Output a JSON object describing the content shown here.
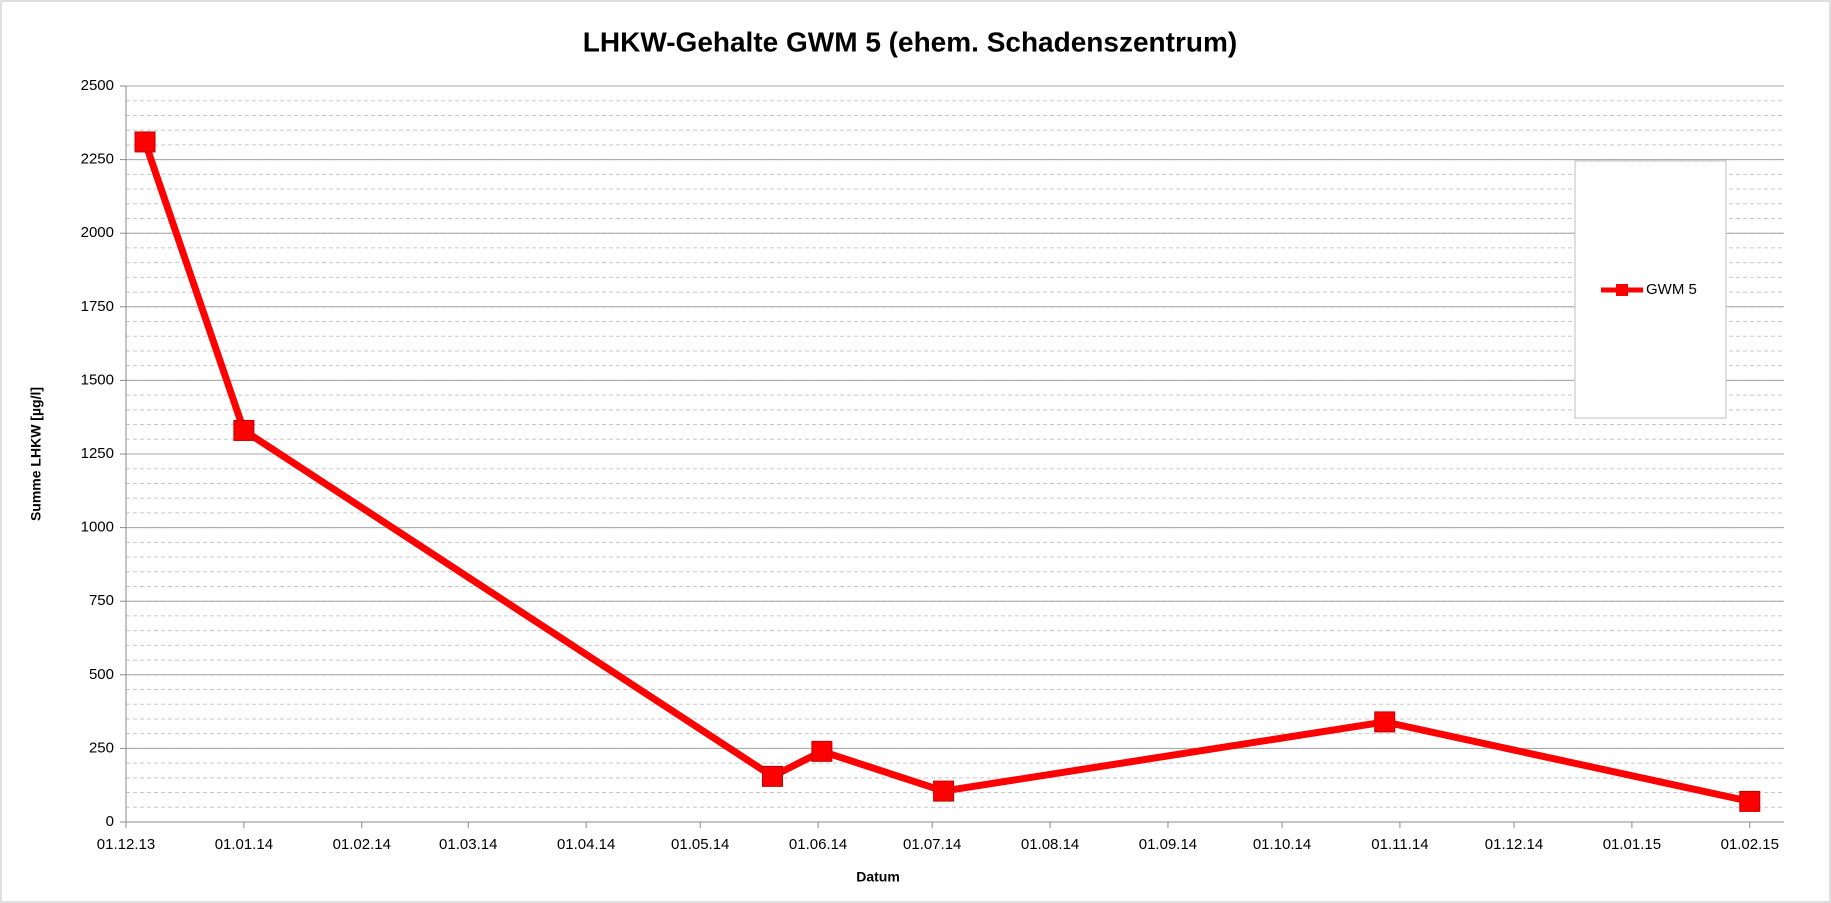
{
  "chart_data": {
    "type": "line",
    "title": "LHKW-Gehalte  GWM 5 (ehem. Schadenszentrum)",
    "x_label": "Datum",
    "y_label": "Summe LHKW [µg/l]",
    "x": [
      "2013-12-06",
      "2014-01-01",
      "2014-05-20",
      "2014-06-02",
      "2014-07-04",
      "2014-10-28",
      "2015-02-01"
    ],
    "series": [
      {
        "name": "GWM 5",
        "color": "#ff0000",
        "values": [
          2310,
          1330,
          155,
          240,
          105,
          340,
          70
        ]
      }
    ],
    "xlim": [
      "2013-12-01",
      "2015-02-10"
    ],
    "xticks": [
      {
        "value": "2013-12-01",
        "label": "01.12.13"
      },
      {
        "value": "2014-01-01",
        "label": "01.01.14"
      },
      {
        "value": "2014-02-01",
        "label": "01.02.14"
      },
      {
        "value": "2014-03-01",
        "label": "01.03.14"
      },
      {
        "value": "2014-04-01",
        "label": "01.04.14"
      },
      {
        "value": "2014-05-01",
        "label": "01.05.14"
      },
      {
        "value": "2014-06-01",
        "label": "01.06.14"
      },
      {
        "value": "2014-07-01",
        "label": "01.07.14"
      },
      {
        "value": "2014-08-01",
        "label": "01.08.14"
      },
      {
        "value": "2014-09-01",
        "label": "01.09.14"
      },
      {
        "value": "2014-10-01",
        "label": "01.10.14"
      },
      {
        "value": "2014-11-01",
        "label": "01.11.14"
      },
      {
        "value": "2014-12-01",
        "label": "01.12.14"
      },
      {
        "value": "2015-01-01",
        "label": "01.01.15"
      },
      {
        "value": "2015-02-01",
        "label": "01.02.15"
      }
    ],
    "ylim": [
      0,
      2500
    ],
    "yticks": [
      0,
      250,
      500,
      750,
      1000,
      1250,
      1500,
      1750,
      2000,
      2250,
      2500
    ],
    "grid": true,
    "minor_grid_step": 50,
    "legend": "right"
  }
}
